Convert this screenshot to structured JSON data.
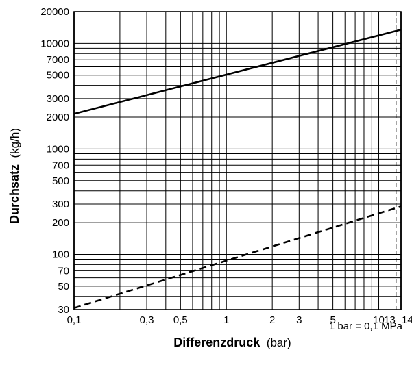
{
  "chart_data": {
    "type": "line",
    "title": "",
    "xlabel": {
      "bold": "Differenzdruck",
      "unit": "(bar)"
    },
    "ylabel": {
      "bold": "Durchsatz",
      "unit": "(kg/h)"
    },
    "x_scale": "log",
    "y_scale": "log",
    "xlim": [
      0.1,
      14
    ],
    "ylim": [
      30,
      20000
    ],
    "grid": true,
    "x_ticks": [
      {
        "value": 0.1,
        "label": "0,1"
      },
      {
        "value": 0.3,
        "label": "0,3"
      },
      {
        "value": 0.5,
        "label": "0,5"
      },
      {
        "value": 1,
        "label": "1"
      },
      {
        "value": 2,
        "label": "2"
      },
      {
        "value": 3,
        "label": "3"
      },
      {
        "value": 5,
        "label": "5"
      },
      {
        "value": 10,
        "label": "10"
      },
      {
        "value": 13,
        "label": "13"
      },
      {
        "value": 14,
        "label": "14"
      }
    ],
    "y_ticks": [
      {
        "value": 30,
        "label": "30"
      },
      {
        "value": 50,
        "label": "50"
      },
      {
        "value": 70,
        "label": "70"
      },
      {
        "value": 100,
        "label": "100"
      },
      {
        "value": 200,
        "label": "200"
      },
      {
        "value": 300,
        "label": "300"
      },
      {
        "value": 500,
        "label": "500"
      },
      {
        "value": 700,
        "label": "700"
      },
      {
        "value": 1000,
        "label": "1000"
      },
      {
        "value": 2000,
        "label": "2000"
      },
      {
        "value": 3000,
        "label": "3000"
      },
      {
        "value": 5000,
        "label": "5000"
      },
      {
        "value": 7000,
        "label": "7000"
      },
      {
        "value": 10000,
        "label": "10000"
      },
      {
        "value": 20000,
        "label": "20000"
      }
    ],
    "x_gridlines": [
      0.1,
      0.2,
      0.3,
      0.4,
      0.5,
      0.6,
      0.7,
      0.8,
      0.9,
      1,
      2,
      3,
      4,
      5,
      6,
      7,
      8,
      9,
      10,
      13,
      14
    ],
    "y_gridlines": [
      30,
      40,
      50,
      60,
      70,
      80,
      90,
      100,
      200,
      300,
      400,
      500,
      600,
      700,
      800,
      900,
      1000,
      2000,
      3000,
      4000,
      5000,
      6000,
      7000,
      8000,
      9000,
      10000,
      20000
    ],
    "dashed_vertical_at": 13,
    "series": [
      {
        "style": "solid",
        "x": [
          0.1,
          14
        ],
        "y": [
          2150,
          13500
        ]
      },
      {
        "style": "dashed",
        "x": [
          0.1,
          14
        ],
        "y": [
          31,
          285
        ]
      }
    ],
    "annotation": "1 bar = 0,1 MPa"
  }
}
